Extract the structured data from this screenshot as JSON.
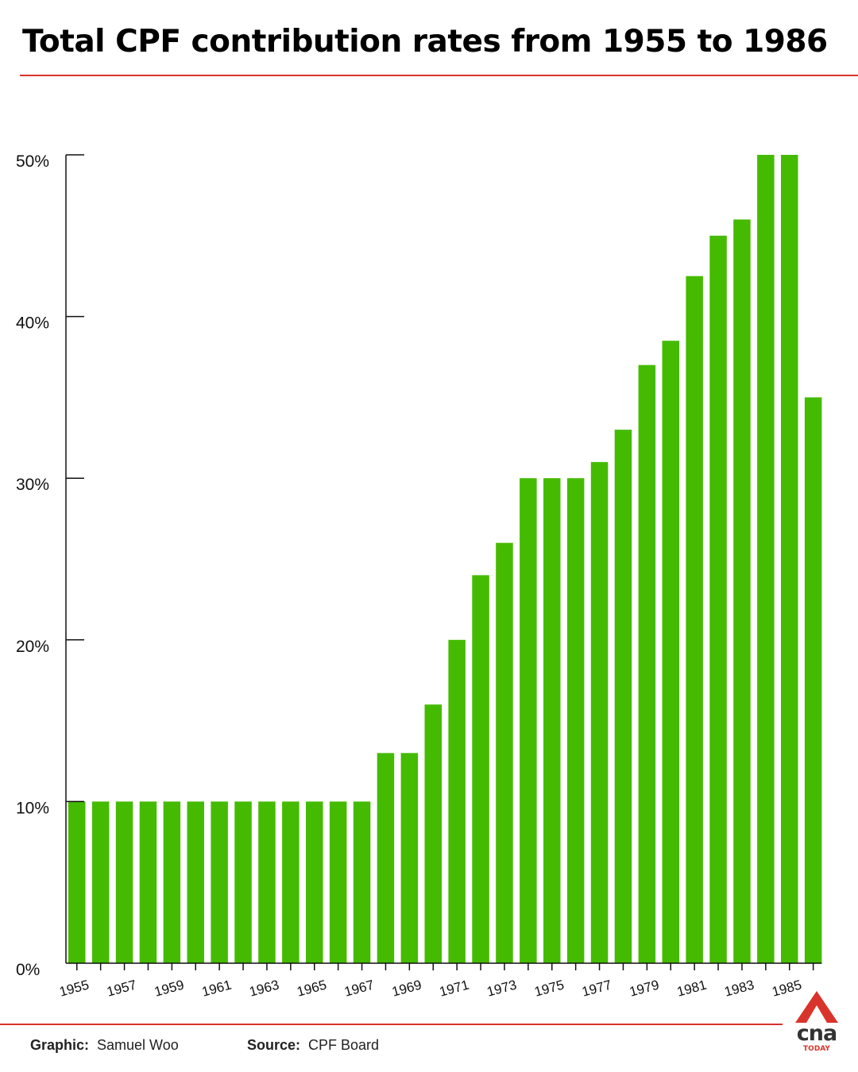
{
  "title": "Total CPF contribution rates from 1955 to 1986",
  "footer": {
    "graphic_label": "Graphic:",
    "graphic_value": "Samuel Woo",
    "source_label": "Source:",
    "source_value": "CPF Board"
  },
  "logo": {
    "word": "cna",
    "sub": "TODAY"
  },
  "colors": {
    "bar": "#44bb00",
    "accent": "#d9342b",
    "axis": "#111111"
  },
  "chart_data": {
    "type": "bar",
    "title": "Total CPF contribution rates from 1955 to 1986",
    "xlabel": "",
    "ylabel": "",
    "ylim": [
      0,
      50
    ],
    "yticks": [
      "0%",
      "10%",
      "20%",
      "30%",
      "40%",
      "50%"
    ],
    "grid": false,
    "categories": [
      "1955",
      "1956",
      "1957",
      "1958",
      "1959",
      "1960",
      "1961",
      "1962",
      "1963",
      "1964",
      "1965",
      "1966",
      "1967",
      "1968",
      "1969",
      "1970",
      "1971",
      "1972",
      "1973",
      "1974",
      "1975",
      "1976",
      "1977",
      "1978",
      "1979",
      "1980",
      "1981",
      "1982",
      "1983",
      "1984",
      "1985",
      "1986"
    ],
    "xtick_labels": [
      "1955",
      "1957",
      "1959",
      "1961",
      "1963",
      "1965",
      "1967",
      "1969",
      "1971",
      "1973",
      "1975",
      "1977",
      "1979",
      "1981",
      "1983",
      "1985"
    ],
    "values": [
      10,
      10,
      10,
      10,
      10,
      10,
      10,
      10,
      10,
      10,
      10,
      10,
      10,
      13,
      13,
      16,
      20,
      24,
      26,
      30,
      30,
      30,
      31,
      33,
      37,
      38.5,
      42.5,
      45,
      46,
      50,
      50,
      35
    ]
  }
}
